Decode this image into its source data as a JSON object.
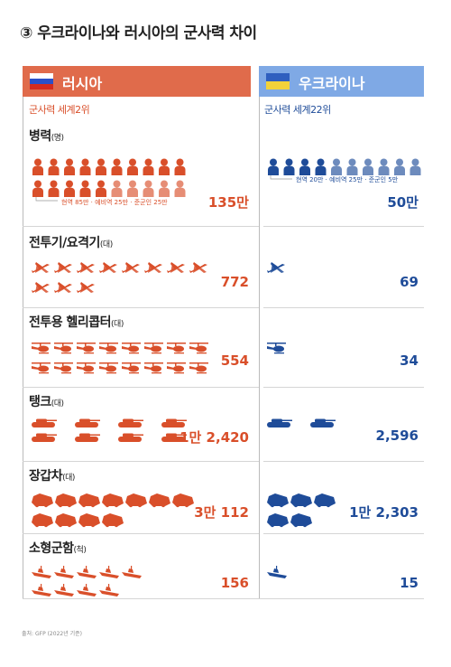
{
  "title": "③ 우크라이나와 러시아의 군사력 차이",
  "countries": {
    "russia": {
      "name": "러시아",
      "rank": "군사력 세계2위",
      "color": "#e06b4b",
      "value_color": "#d94f2a"
    },
    "ukraine": {
      "name": "우크라이나",
      "rank": "군사력 세계22위",
      "color": "#7fa9e5",
      "value_color": "#1f4c99"
    }
  },
  "chart_data": {
    "type": "table",
    "categories": [
      {
        "key": "troops",
        "label": "병력",
        "unit": "(명)",
        "icon": "soldier-icon",
        "russia": {
          "display": "135만",
          "value": 1350000,
          "icons": 20,
          "breakdown": "현역 85만 · 예비역 25만 · 준군인 25만",
          "breakdown_parts": {
            "active": 850000,
            "reserve": 250000,
            "paramilitary": 250000
          }
        },
        "ukraine": {
          "display": "50만",
          "value": 500000,
          "icons": 10,
          "breakdown": "현역 20만 · 예비역 25만 · 준군인 5만",
          "breakdown_parts": {
            "active": 200000,
            "reserve": 250000,
            "paramilitary": 50000
          }
        }
      },
      {
        "key": "fighters",
        "label": "전투기/요격기",
        "unit": "(대)",
        "icon": "fighter-jet-icon",
        "russia": {
          "display": "772",
          "value": 772,
          "icons": 11
        },
        "ukraine": {
          "display": "69",
          "value": 69,
          "icons": 1
        }
      },
      {
        "key": "helicopters",
        "label": "전투용 헬리콥터",
        "unit": "(대)",
        "icon": "helicopter-icon",
        "russia": {
          "display": "554",
          "value": 554,
          "icons": 16
        },
        "ukraine": {
          "display": "34",
          "value": 34,
          "icons": 1
        }
      },
      {
        "key": "tanks",
        "label": "탱크",
        "unit": "(대)",
        "icon": "tank-icon",
        "russia": {
          "display": "1만 2,420",
          "value": 12420,
          "icons": 8
        },
        "ukraine": {
          "display": "2,596",
          "value": 2596,
          "icons": 2
        }
      },
      {
        "key": "armored",
        "label": "장갑차",
        "unit": "(대)",
        "icon": "armored-vehicle-icon",
        "russia": {
          "display": "3만 112",
          "value": 30112,
          "icons": 11
        },
        "ukraine": {
          "display": "1만 2,303",
          "value": 12303,
          "icons": 5
        }
      },
      {
        "key": "ships",
        "label": "소형군함",
        "unit": "(척)",
        "icon": "warship-icon",
        "russia": {
          "display": "156",
          "value": 156,
          "icons": 9
        },
        "ukraine": {
          "display": "15",
          "value": 15,
          "icons": 1
        }
      }
    ]
  },
  "source": "출처: GFP (2022년 기준)"
}
